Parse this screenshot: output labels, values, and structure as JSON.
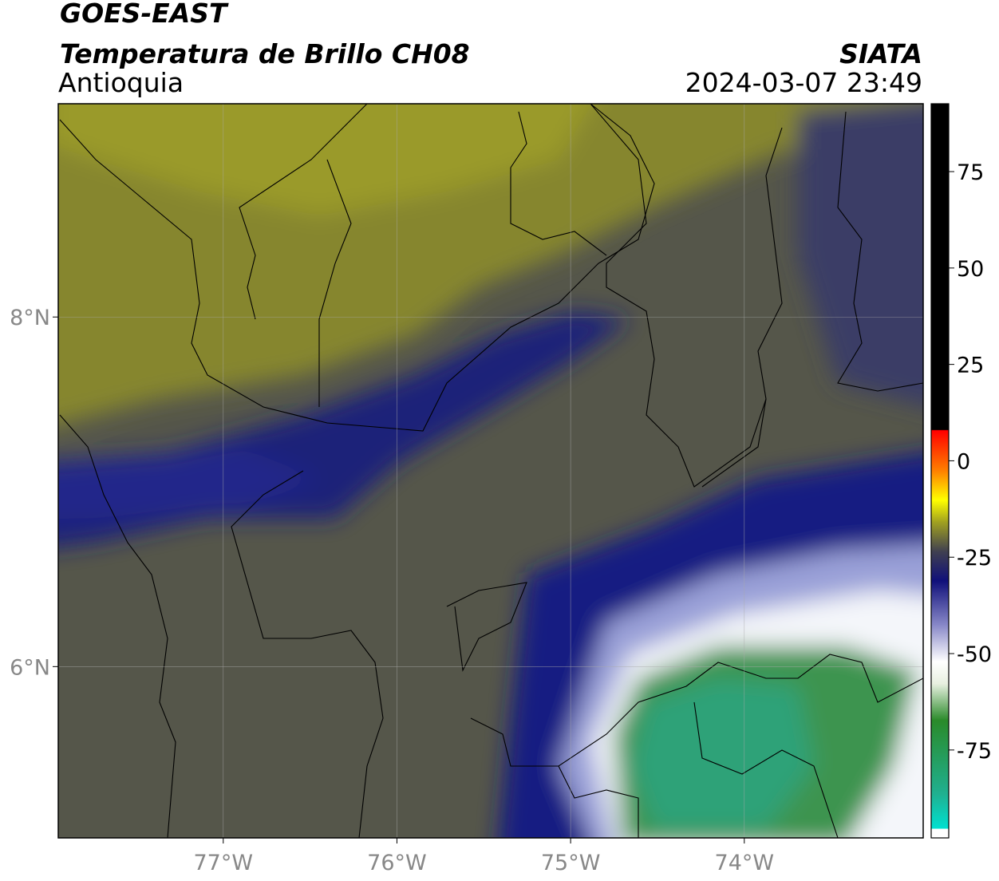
{
  "map": {
    "title": "GOES-EAST",
    "subtitle": "Temperatura de Brillo CH08",
    "region": "Antioquia",
    "agency": "SIATA",
    "timestamp": "2024-03-07 23:49",
    "xlim": [
      -77.95,
      -72.97
    ],
    "ylim": [
      5.02,
      9.22
    ],
    "xticks": [
      {
        "value": -77,
        "label": "77°W"
      },
      {
        "value": -76,
        "label": "76°W"
      },
      {
        "value": -75,
        "label": "75°W"
      },
      {
        "value": -74,
        "label": "74°W"
      }
    ],
    "yticks": [
      {
        "value": 6,
        "label": "6°N"
      },
      {
        "value": 8,
        "label": "8°N"
      }
    ],
    "grid": true
  },
  "colorbar": {
    "lim": [
      -97.8,
      92.6
    ],
    "ticks": [
      75,
      50,
      25,
      0,
      -25,
      -50,
      -75
    ]
  }
}
